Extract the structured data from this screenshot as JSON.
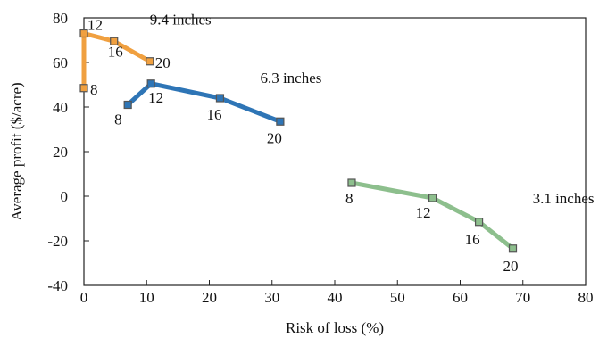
{
  "chart_data": {
    "type": "line",
    "xlabel": "Risk of loss (%)",
    "ylabel": "Average profit ($/acre)",
    "xlim": [
      0,
      80
    ],
    "ylim": [
      -40,
      80
    ],
    "xticks": [
      0,
      10,
      20,
      30,
      40,
      50,
      60,
      70,
      80
    ],
    "yticks": [
      -40,
      -20,
      0,
      20,
      40,
      60,
      80
    ],
    "grid": false,
    "series": [
      {
        "name": "9.4 inches",
        "color": "#F0A040",
        "points": [
          {
            "x": 0,
            "y": 48.5,
            "label": "8"
          },
          {
            "x": 0,
            "y": 73,
            "label": "12"
          },
          {
            "x": 4.8,
            "y": 69.5,
            "label": "16"
          },
          {
            "x": 10.5,
            "y": 60.5,
            "label": "20"
          }
        ]
      },
      {
        "name": "6.3 inches",
        "color": "#2E75B6",
        "points": [
          {
            "x": 7,
            "y": 41,
            "label": "8"
          },
          {
            "x": 10.7,
            "y": 50.5,
            "label": "12"
          },
          {
            "x": 21.7,
            "y": 44,
            "label": "16"
          },
          {
            "x": 31.3,
            "y": 33.5,
            "label": "20"
          }
        ]
      },
      {
        "name": "3.1 inches",
        "color": "#8DBF8D",
        "points": [
          {
            "x": 42.7,
            "y": 6,
            "label": "8"
          },
          {
            "x": 55.6,
            "y": -0.8,
            "label": "12"
          },
          {
            "x": 63,
            "y": -11.5,
            "label": "16"
          },
          {
            "x": 68.4,
            "y": -23.5,
            "label": "20"
          }
        ]
      }
    ]
  }
}
